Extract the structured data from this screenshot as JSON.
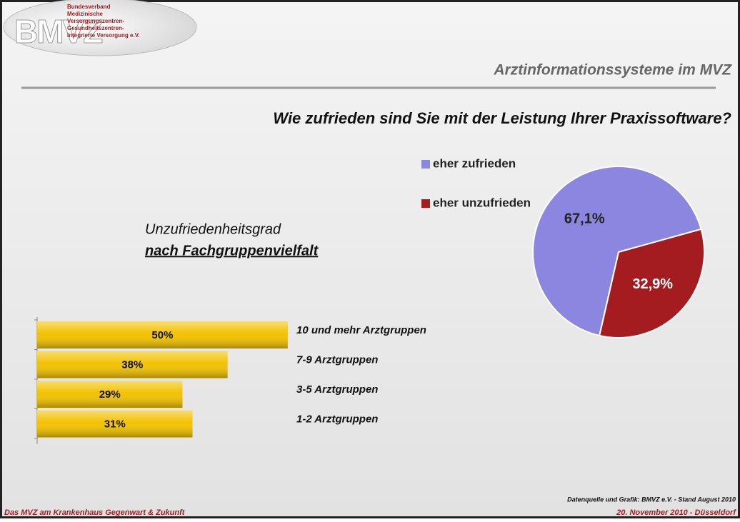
{
  "slide": {
    "logo": {
      "mark": "BMVZ",
      "lines": [
        "Bundesverband",
        "Medizinische",
        "Versorgungszentren-",
        "Gesundheitszentren-",
        "Integrierte Versorgung e.V."
      ]
    },
    "header": "Arztinformationssysteme im MVZ",
    "question": "Wie zufrieden sind Sie mit der Leistung Ihrer Praxissoftware?",
    "subtitle": "Unzufriedenheitsgrad",
    "subtitle_emphasis": "nach Fachgruppenvielfalt",
    "source": "Datenquelle und Grafik: BMVZ e.V. - Stand August 2010",
    "footer_left": "Das MVZ am Krankenhaus Gegenwart & Zukunft",
    "footer_right": "20. November 2010 - Düsseldorf"
  },
  "chart_data": [
    {
      "type": "pie",
      "categories": [
        "eher zufrieden",
        "eher unzufrieden"
      ],
      "values": [
        67.1,
        32.9
      ],
      "value_labels": [
        "67,1%",
        "32,9%"
      ],
      "colors": [
        "#8b87e0",
        "#a51c20"
      ],
      "label_colors": [
        "#222222",
        "#ffffff"
      ]
    },
    {
      "type": "hbar",
      "categories": [
        "10 und mehr Arztgruppen",
        "7-9 Arztgruppen",
        "3-5 Arztgruppen",
        "1-2 Arztgruppen"
      ],
      "values": [
        50,
        38,
        29,
        31
      ],
      "value_labels": [
        "50%",
        "38%",
        "29%",
        "31%"
      ],
      "color": "#f2c200",
      "xlim": [
        0,
        60
      ]
    }
  ]
}
